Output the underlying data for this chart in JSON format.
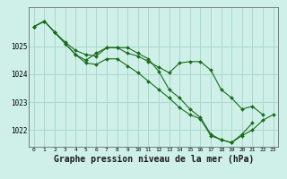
{
  "background_color": "#cef0e8",
  "grid_color": "#aad8cc",
  "line_color": "#1a6b1a",
  "marker_color": "#1a6b1a",
  "xlabel": "Graphe pression niveau de la mer (hPa)",
  "xlabel_fontsize": 7,
  "xlim": [
    -0.5,
    23.5
  ],
  "ylim": [
    1021.4,
    1026.4
  ],
  "yticks": [
    1022,
    1023,
    1024,
    1025
  ],
  "xticks": [
    0,
    1,
    2,
    3,
    4,
    5,
    6,
    7,
    8,
    9,
    10,
    11,
    12,
    13,
    14,
    15,
    16,
    17,
    18,
    19,
    20,
    21,
    22,
    23
  ],
  "series": [
    [
      1025.7,
      1025.9,
      1025.5,
      1025.15,
      1024.85,
      1024.7,
      1024.65,
      1024.95,
      1024.95,
      1024.95,
      1024.75,
      1024.55,
      1024.1,
      1023.45,
      1023.15,
      1022.75,
      1022.45,
      1021.85,
      1021.65,
      1021.55,
      1021.85,
      1022.25,
      null,
      null
    ],
    [
      1025.7,
      1025.9,
      1025.5,
      1025.1,
      1024.7,
      1024.5,
      1024.75,
      1024.95,
      1024.95,
      1024.75,
      1024.65,
      1024.45,
      1024.25,
      1024.05,
      1024.4,
      1024.45,
      1024.45,
      1024.15,
      1023.45,
      1023.15,
      1022.75,
      1022.85,
      1022.55,
      null
    ],
    [
      1025.7,
      1025.9,
      1025.5,
      1025.1,
      1024.7,
      1024.4,
      1024.35,
      1024.55,
      1024.55,
      1024.3,
      1024.05,
      1023.75,
      1023.45,
      1023.15,
      1022.8,
      1022.55,
      1022.4,
      1021.8,
      1021.65,
      1021.55,
      1021.8,
      1022.0,
      1022.35,
      1022.55
    ]
  ]
}
